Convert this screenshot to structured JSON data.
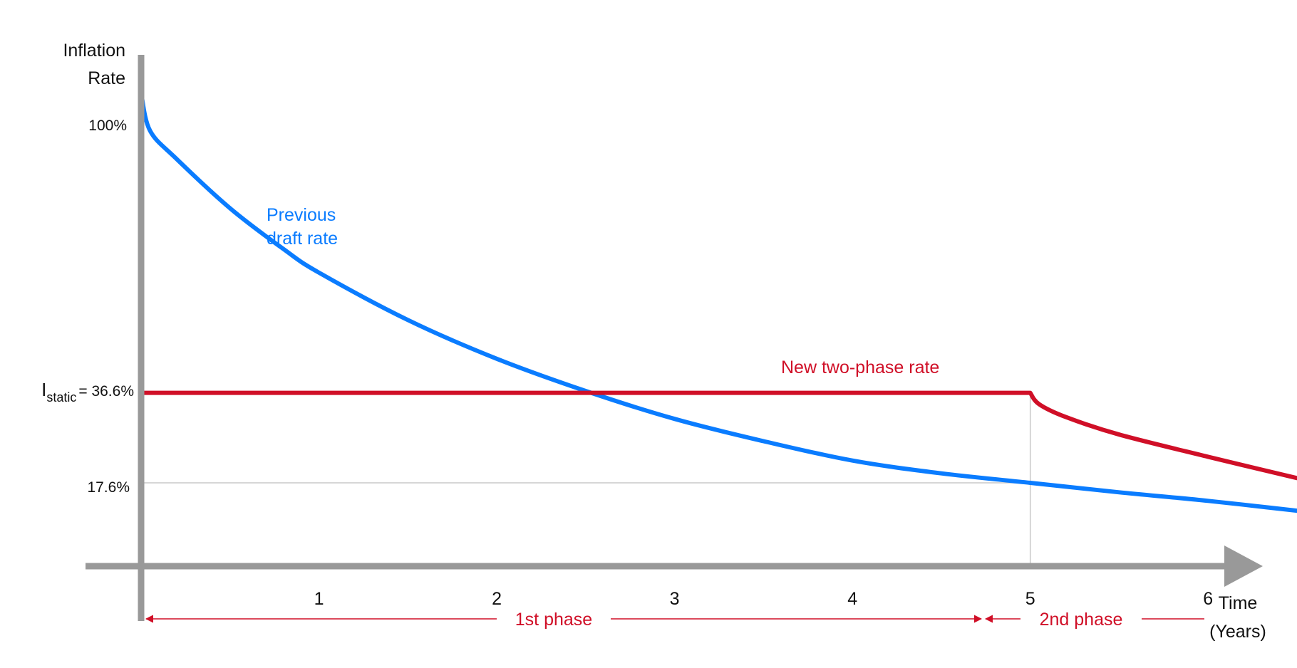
{
  "chart_data": {
    "type": "line",
    "y_axis_title": [
      "Inflation",
      "Rate"
    ],
    "x_axis_title": [
      "Time",
      "(Years)"
    ],
    "x_ticks": [
      1,
      2,
      3,
      4,
      5,
      6
    ],
    "xlim": [
      0,
      6.5
    ],
    "ylim": [
      0,
      108
    ],
    "y_ticks": [
      {
        "value": 100,
        "label": "100%"
      },
      {
        "value": 36.6,
        "label": "= 36.6%",
        "prefix": "I",
        "subscript": "static"
      },
      {
        "value": 17.6,
        "label": "17.6%"
      }
    ],
    "reference_lines": [
      {
        "axis": "y",
        "value": 17.6
      },
      {
        "axis": "x",
        "value": 5
      }
    ],
    "series": [
      {
        "name": "Previous draft rate",
        "label_lines": [
          "Previous",
          "draft rate"
        ],
        "color": "#0a7cff",
        "points": [
          [
            0,
            100
          ],
          [
            0.05,
            92
          ],
          [
            0.2,
            86
          ],
          [
            0.5,
            75.6
          ],
          [
            0.8,
            67
          ],
          [
            1,
            62
          ],
          [
            1.5,
            52
          ],
          [
            2,
            43.8
          ],
          [
            2.5,
            37
          ],
          [
            3,
            31.1
          ],
          [
            3.5,
            26.4
          ],
          [
            4,
            22.3
          ],
          [
            4.5,
            19.6
          ],
          [
            5,
            17.6
          ],
          [
            5.5,
            15.6
          ],
          [
            6,
            13.8
          ],
          [
            6.5,
            11.7
          ]
        ]
      },
      {
        "name": "New two-phase rate",
        "label_lines": [
          "New two-phase rate"
        ],
        "color": "#d00f27",
        "points": [
          [
            0,
            36.6
          ],
          [
            5,
            36.6
          ],
          [
            5.05,
            34.2
          ],
          [
            5.2,
            31.5
          ],
          [
            5.5,
            27.8
          ],
          [
            6,
            23.1
          ],
          [
            6.5,
            18.6
          ]
        ]
      }
    ],
    "phases": [
      {
        "label": "1st phase",
        "from": 0,
        "to": 5
      },
      {
        "label": "2nd phase",
        "from": 5,
        "to": 6.5
      }
    ],
    "colors": {
      "axis": "#999999",
      "gridline": "#c8c8c8",
      "phase": "#d00f27"
    }
  }
}
